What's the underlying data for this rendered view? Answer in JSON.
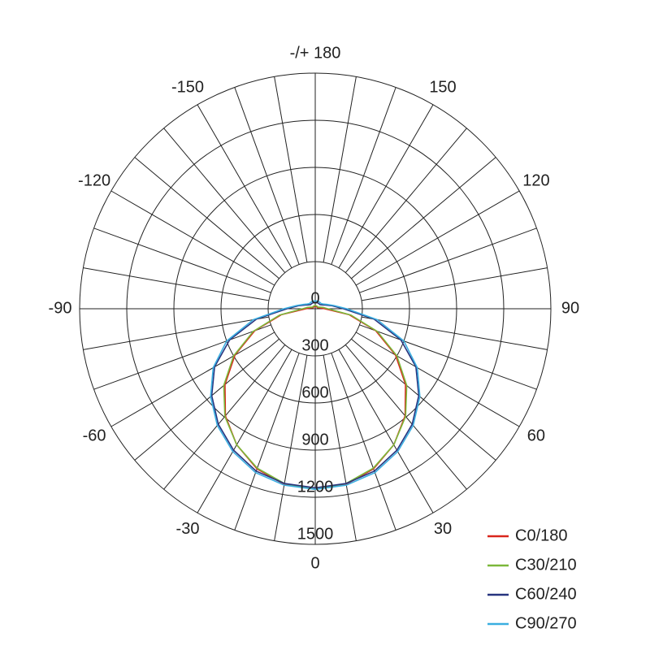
{
  "chart_data": {
    "type": "polar",
    "theta": [
      -180,
      -170,
      -160,
      -150,
      -140,
      -130,
      -120,
      -110,
      -100,
      -90,
      -80,
      -70,
      -60,
      -50,
      -40,
      -30,
      -20,
      -10,
      0,
      10,
      20,
      30,
      40,
      50,
      60,
      70,
      80,
      90,
      100,
      110,
      120,
      130,
      140,
      150,
      160,
      170,
      180
    ],
    "rlim": [
      0,
      1500
    ],
    "rticks": [
      0,
      300,
      600,
      900,
      1200,
      1500
    ],
    "thetaticks": [
      -150,
      -120,
      -90,
      -60,
      -30,
      0,
      30,
      60,
      90,
      120,
      150,
      {
        "value": 180,
        "label": "-/+ 180"
      }
    ],
    "grid": true,
    "legend": "lower right",
    "series": [
      {
        "name": "C0/180",
        "color": "#d9261c",
        "values": [
          15,
          15,
          15,
          15,
          15,
          15,
          15,
          20,
          30,
          60,
          220,
          410,
          590,
          750,
          890,
          1000,
          1085,
          1135,
          1150,
          1135,
          1085,
          1000,
          890,
          750,
          590,
          410,
          220,
          60,
          30,
          20,
          15,
          15,
          15,
          15,
          15,
          15,
          15
        ]
      },
      {
        "name": "C30/210",
        "color": "#7cb83a",
        "values": [
          20,
          20,
          20,
          20,
          20,
          20,
          20,
          30,
          50,
          80,
          230,
          420,
          600,
          760,
          895,
          1000,
          1080,
          1130,
          1150,
          1130,
          1080,
          1000,
          895,
          760,
          600,
          420,
          230,
          80,
          50,
          30,
          20,
          20,
          20,
          20,
          20,
          20,
          20
        ]
      },
      {
        "name": "C60/240",
        "color": "#27347f",
        "values": [
          40,
          40,
          40,
          40,
          40,
          40,
          50,
          70,
          110,
          180,
          380,
          580,
          740,
          860,
          960,
          1040,
          1100,
          1130,
          1140,
          1130,
          1100,
          1040,
          960,
          860,
          740,
          580,
          380,
          180,
          110,
          70,
          50,
          40,
          40,
          40,
          40,
          40,
          40
        ]
      },
      {
        "name": "C90/270",
        "color": "#3aaee0",
        "values": [
          50,
          50,
          50,
          50,
          50,
          50,
          60,
          80,
          120,
          200,
          400,
          600,
          750,
          870,
          970,
          1050,
          1110,
          1140,
          1150,
          1140,
          1110,
          1050,
          970,
          870,
          750,
          600,
          400,
          200,
          120,
          80,
          60,
          50,
          50,
          50,
          50,
          50,
          50
        ]
      }
    ]
  }
}
